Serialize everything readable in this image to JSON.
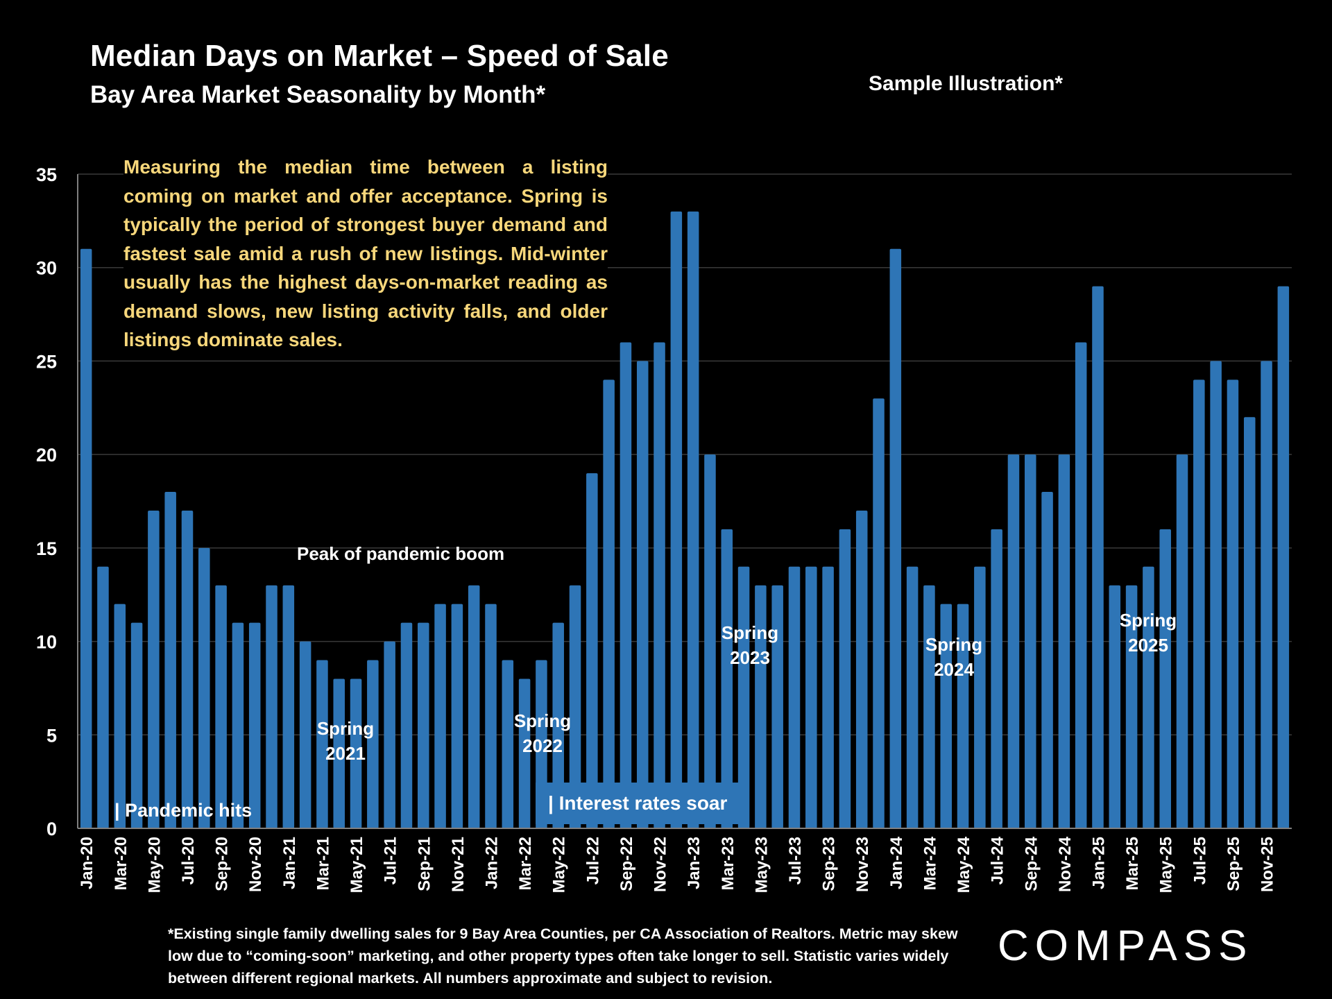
{
  "header": {
    "title": "Median Days on Market – Speed of Sale",
    "subtitle": "Bay Area Market Seasonality by Month*",
    "sample_note": "Sample Illustration*"
  },
  "description": "Measuring the median time between a listing coming on market and offer acceptance. Spring is typically the period of strongest buyer demand and fastest sale amid a rush of new listings. Mid-winter usually has the highest days-on-market reading as demand slows, new listing activity falls, and older listings dominate sales.",
  "annotations": {
    "pandemic_hits": "| Pandemic hits",
    "peak_boom": "Peak of pandemic boom",
    "interest_rates": "| Interest rates soar",
    "spring_2021": [
      "Spring",
      "2021"
    ],
    "spring_2022": [
      "Spring",
      "2022"
    ],
    "spring_2023": [
      "Spring",
      "2023"
    ],
    "spring_2024": [
      "Spring",
      "2024"
    ],
    "spring_2025": [
      "Spring",
      "2025"
    ]
  },
  "footer": "*Existing single family dwelling sales for 9 Bay Area Counties, per CA Association of Realtors. Metric may skew low due to “coming-soon” marketing, and other property types often take longer to sell. Statistic varies widely between different regional markets. All numbers approximate and subject to revision.",
  "logo": "COMPASS",
  "colors": {
    "bar": "#2E75B6",
    "description_text": "#F7D77B",
    "background": "#000000",
    "grid": "#3a3a3a"
  },
  "chart_data": {
    "type": "bar",
    "title": "Median Days on Market – Speed of Sale",
    "subtitle": "Bay Area Market Seasonality by Month*",
    "xlabel": "",
    "ylabel": "",
    "ylim": [
      0,
      35
    ],
    "yticks": [
      0,
      5,
      10,
      15,
      20,
      25,
      30,
      35
    ],
    "grid": true,
    "legend": "none",
    "categories": [
      "Jan-20",
      "Feb-20",
      "Mar-20",
      "Apr-20",
      "May-20",
      "Jun-20",
      "Jul-20",
      "Aug-20",
      "Sep-20",
      "Oct-20",
      "Nov-20",
      "Dec-20",
      "Jan-21",
      "Feb-21",
      "Mar-21",
      "Apr-21",
      "May-21",
      "Jun-21",
      "Jul-21",
      "Aug-21",
      "Sep-21",
      "Oct-21",
      "Nov-21",
      "Dec-21",
      "Jan-22",
      "Feb-22",
      "Mar-22",
      "Apr-22",
      "May-22",
      "Jun-22",
      "Jul-22",
      "Aug-22",
      "Sep-22",
      "Oct-22",
      "Nov-22",
      "Dec-22",
      "Jan-23",
      "Feb-23",
      "Mar-23",
      "Apr-23",
      "May-23",
      "Jun-23",
      "Jul-23",
      "Aug-23",
      "Sep-23",
      "Oct-23",
      "Nov-23",
      "Dec-23",
      "Jan-24",
      "Feb-24",
      "Mar-24",
      "Apr-24",
      "May-24",
      "Jun-24",
      "Jul-24",
      "Aug-24",
      "Sep-24",
      "Oct-24",
      "Nov-24",
      "Dec-24",
      "Jan-25",
      "Feb-25",
      "Mar-25",
      "Apr-25",
      "May-25",
      "Jun-25",
      "Jul-25",
      "Aug-25",
      "Sep-25",
      "Oct-25",
      "Nov-25",
      "Dec-25"
    ],
    "values": [
      31,
      14,
      12,
      11,
      17,
      18,
      17,
      15,
      13,
      11,
      11,
      13,
      13,
      10,
      9,
      8,
      8,
      9,
      10,
      11,
      11,
      12,
      12,
      13,
      12,
      9,
      8,
      9,
      11,
      13,
      19,
      24,
      26,
      25,
      26,
      33,
      33,
      20,
      16,
      14,
      13,
      13,
      14,
      14,
      14,
      16,
      17,
      23,
      31,
      14,
      13,
      12,
      12,
      14,
      16,
      20,
      20,
      18,
      20,
      26,
      29,
      13,
      13,
      14,
      16,
      20,
      24,
      25,
      24,
      22,
      25,
      29
    ],
    "tick_labels_shown": [
      "Jan-20",
      "Mar-20",
      "May-20",
      "Jul-20",
      "Sep-20",
      "Nov-20",
      "Jan-21",
      "Mar-21",
      "May-21",
      "Jul-21",
      "Sep-21",
      "Nov-21",
      "Jan-22",
      "Mar-22",
      "May-22",
      "Jul-22",
      "Sep-22",
      "Nov-22",
      "Jan-23",
      "Mar-23",
      "May-23",
      "Jul-23",
      "Sep-23",
      "Nov-23",
      "Jan-24",
      "Mar-24",
      "May-24",
      "Jul-24",
      "Sep-24",
      "Nov-24",
      "Jan-25",
      "Mar-25",
      "May-25",
      "Jul-25",
      "Sep-25",
      "Nov-25"
    ]
  }
}
